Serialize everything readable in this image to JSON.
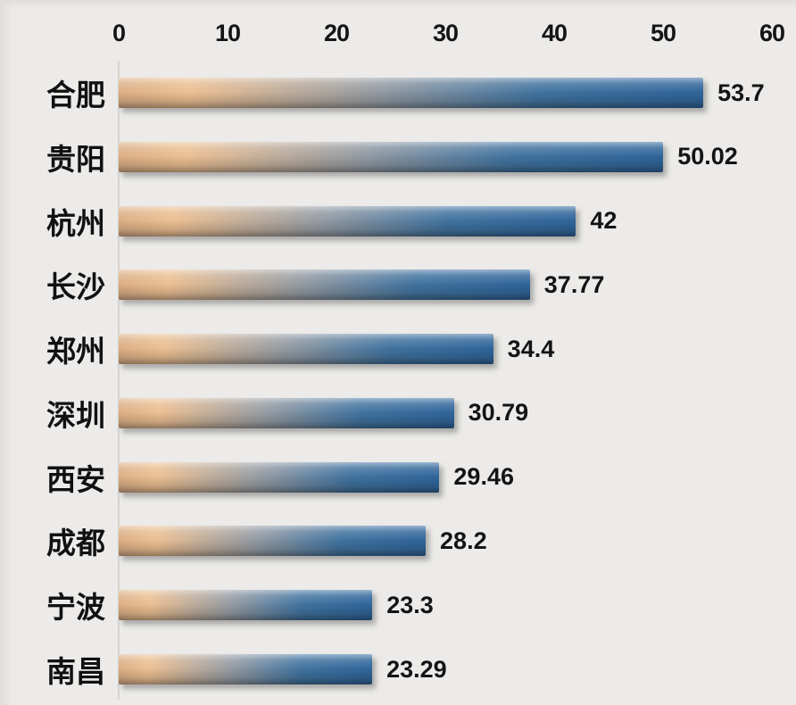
{
  "chart_data": {
    "type": "bar",
    "orientation": "horizontal",
    "title": "",
    "xlabel": "",
    "ylabel": "",
    "categories": [
      "合肥",
      "贵阳",
      "杭州",
      "长沙",
      "郑州",
      "深圳",
      "西安",
      "成都",
      "宁波",
      "南昌"
    ],
    "values": [
      53.7,
      50.02,
      42,
      37.77,
      34.4,
      30.79,
      29.46,
      28.2,
      23.3,
      23.29
    ],
    "value_labels": [
      "53.7",
      "50.02",
      "42",
      "37.77",
      "34.4",
      "30.79",
      "29.46",
      "28.2",
      "23.3",
      "23.29"
    ],
    "x_ticks": [
      "0",
      "10",
      "20",
      "30",
      "40",
      "50",
      "60"
    ],
    "x_tick_values": [
      0,
      10,
      20,
      30,
      40,
      50,
      60
    ],
    "xlim": [
      0,
      60
    ],
    "axis_position": "top",
    "grid": false,
    "legend": false,
    "colors": {
      "background": "#ecebe9",
      "bar_gradient": [
        "#dcae85",
        "#ecbf92",
        "#959ba2",
        "#41739f",
        "#30659a"
      ],
      "bar_gradient_stops": [
        "0%",
        "12%",
        "44%",
        "72%",
        "100%"
      ],
      "axis_line": "#d7d4d1",
      "text": "#141414"
    }
  }
}
